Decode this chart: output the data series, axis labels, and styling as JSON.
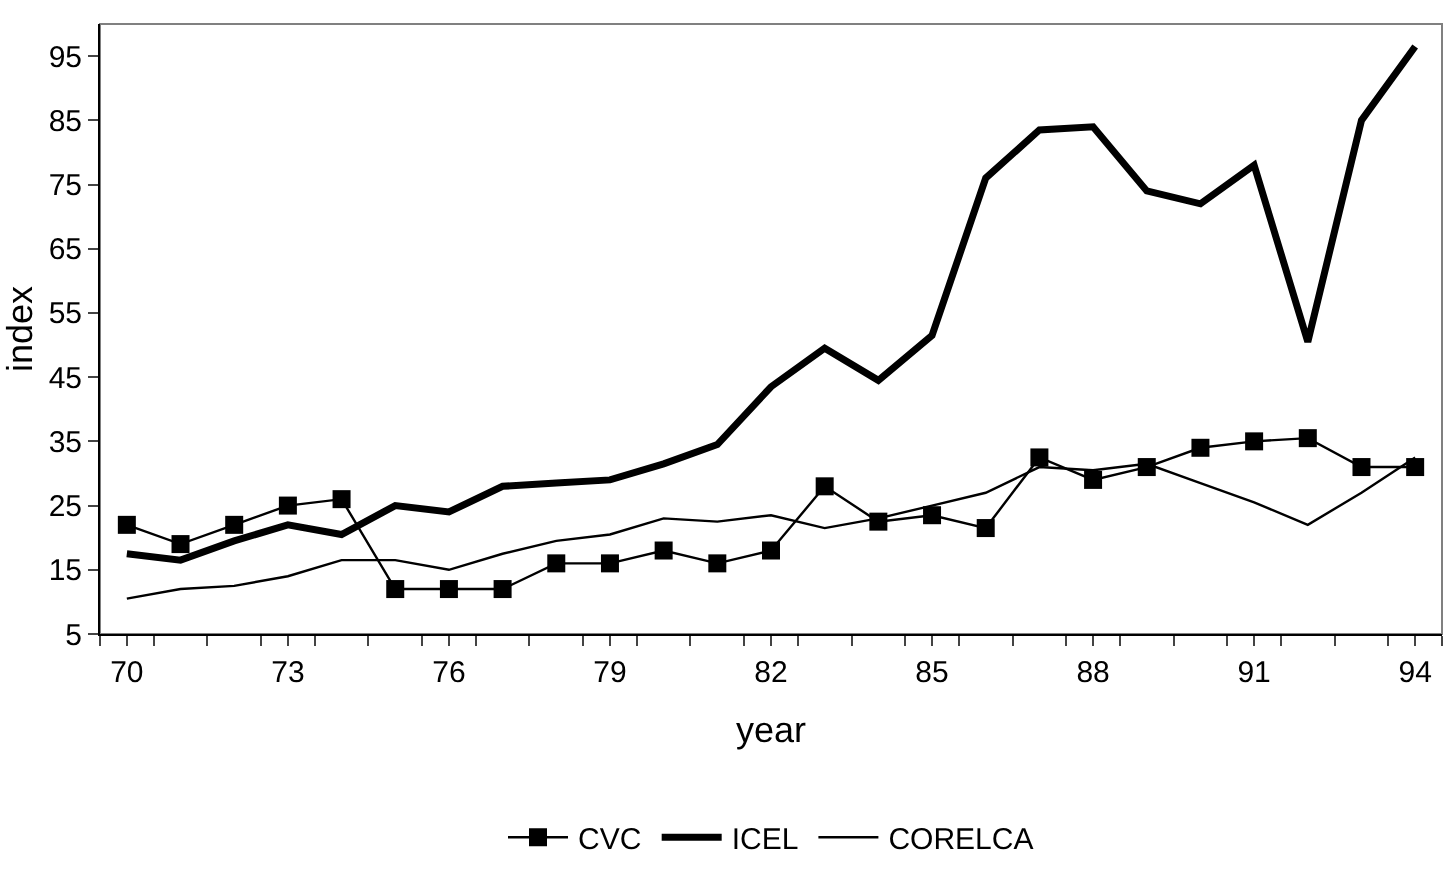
{
  "chart_data": {
    "type": "line",
    "xlabel": "year",
    "ylabel": "index",
    "x": [
      70,
      71,
      72,
      73,
      74,
      75,
      76,
      77,
      78,
      79,
      80,
      81,
      82,
      83,
      84,
      85,
      86,
      87,
      88,
      89,
      90,
      91,
      92,
      93,
      94
    ],
    "series": [
      {
        "name": "CVC",
        "color": "#000000",
        "marker": "square",
        "values": [
          22,
          19,
          22,
          25,
          26,
          12,
          12,
          12,
          16,
          16,
          18,
          16,
          18,
          28,
          22.5,
          23.5,
          21.5,
          32.5,
          29,
          31,
          34,
          35,
          35.5,
          31,
          31
        ]
      },
      {
        "name": "ICEL",
        "color": "#000000",
        "marker": "none",
        "values": [
          17.5,
          16.5,
          19.5,
          22,
          20.5,
          25,
          24,
          28,
          28.5,
          29,
          31.5,
          34.5,
          43.5,
          49.5,
          44.5,
          51.5,
          76,
          83.5,
          84,
          74,
          72,
          78,
          50.5,
          85,
          96.5
        ]
      },
      {
        "name": "CORELCA",
        "color": "#000000",
        "marker": "none",
        "values": [
          10.5,
          12,
          12.5,
          14,
          16.5,
          16.5,
          15,
          17.5,
          19.5,
          20.5,
          23,
          22.5,
          23.5,
          21.5,
          23,
          25,
          27,
          31,
          30.5,
          31.5,
          28.5,
          25.5,
          22,
          27,
          32.5
        ]
      }
    ],
    "xlim": [
      69.5,
      94.5
    ],
    "xticks": [
      {
        "value": 69.5,
        "label": null
      },
      70,
      {
        "value": 70.5,
        "label": null
      },
      {
        "value": 71.5,
        "label": null
      },
      {
        "value": 72.5,
        "label": null
      },
      73,
      {
        "value": 73.5,
        "label": null
      },
      {
        "value": 74.5,
        "label": null
      },
      {
        "value": 75.5,
        "label": null
      },
      76,
      {
        "value": 76.5,
        "label": null
      },
      {
        "value": 77.5,
        "label": null
      },
      {
        "value": 78.5,
        "label": null
      },
      79,
      {
        "value": 79.5,
        "label": null
      },
      {
        "value": 80.5,
        "label": null
      },
      {
        "value": 81.5,
        "label": null
      },
      82,
      {
        "value": 82.5,
        "label": null
      },
      {
        "value": 83.5,
        "label": null
      },
      {
        "value": 84.5,
        "label": null
      },
      85,
      {
        "value": 85.5,
        "label": null
      },
      {
        "value": 86.5,
        "label": null
      },
      {
        "value": 87.5,
        "label": null
      },
      88,
      {
        "value": 88.5,
        "label": null
      },
      {
        "value": 89.5,
        "label": null
      },
      {
        "value": 90.5,
        "label": null
      },
      91,
      {
        "value": 91.5,
        "label": null
      },
      {
        "value": 92.5,
        "label": null
      },
      {
        "value": 93.5,
        "label": null
      },
      94,
      {
        "value": 94.5,
        "label": null
      }
    ],
    "ylim": [
      5,
      100
    ],
    "yticks": [
      5,
      15,
      25,
      35,
      45,
      55,
      65,
      75,
      85,
      95
    ],
    "grid": false,
    "legend": "bottom",
    "line_style": "solid"
  }
}
